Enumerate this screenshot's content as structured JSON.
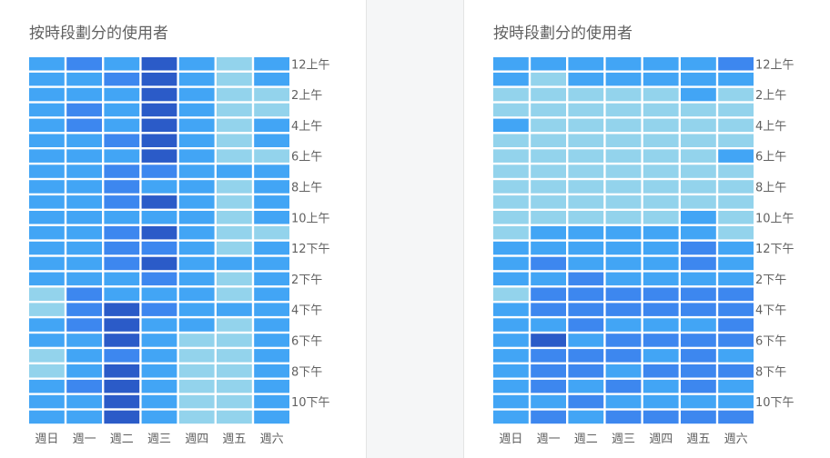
{
  "chart_data": [
    {
      "type": "heatmap",
      "title": "按時段劃分的使用者",
      "x_categories": [
        "週日",
        "週一",
        "週二",
        "週三",
        "週四",
        "週五",
        "週六"
      ],
      "y_labels": [
        "12上午",
        "2上午",
        "4上午",
        "6上午",
        "8上午",
        "10上午",
        "12下午",
        "2下午",
        "4下午",
        "6下午",
        "8下午",
        "10下午"
      ],
      "y_label_every": 2,
      "rows": 24,
      "legend": "none",
      "colors": [
        "#93d3ec",
        "#42a5f5",
        "#3d87ef",
        "#2b5bc8"
      ],
      "levels": [
        [
          1,
          2,
          1,
          3,
          1,
          0,
          1
        ],
        [
          1,
          1,
          2,
          3,
          1,
          0,
          1
        ],
        [
          1,
          1,
          1,
          3,
          1,
          0,
          0
        ],
        [
          1,
          2,
          1,
          3,
          1,
          0,
          0
        ],
        [
          1,
          2,
          1,
          3,
          1,
          0,
          1
        ],
        [
          1,
          1,
          2,
          3,
          1,
          0,
          1
        ],
        [
          1,
          1,
          1,
          3,
          1,
          0,
          0
        ],
        [
          1,
          1,
          2,
          2,
          1,
          1,
          1
        ],
        [
          1,
          1,
          2,
          1,
          1,
          0,
          1
        ],
        [
          1,
          1,
          2,
          3,
          1,
          0,
          1
        ],
        [
          1,
          1,
          1,
          1,
          1,
          0,
          1
        ],
        [
          1,
          1,
          2,
          3,
          1,
          0,
          0
        ],
        [
          1,
          1,
          2,
          2,
          1,
          0,
          1
        ],
        [
          1,
          1,
          2,
          3,
          1,
          1,
          1
        ],
        [
          1,
          1,
          1,
          2,
          1,
          0,
          1
        ],
        [
          0,
          2,
          1,
          1,
          1,
          0,
          1
        ],
        [
          0,
          2,
          3,
          2,
          1,
          1,
          1
        ],
        [
          1,
          2,
          3,
          1,
          1,
          0,
          1
        ],
        [
          1,
          1,
          3,
          1,
          0,
          0,
          1
        ],
        [
          0,
          1,
          2,
          1,
          0,
          0,
          1
        ],
        [
          0,
          1,
          3,
          1,
          0,
          0,
          1
        ],
        [
          1,
          2,
          3,
          1,
          0,
          0,
          1
        ],
        [
          1,
          1,
          3,
          1,
          0,
          0,
          1
        ],
        [
          1,
          1,
          3,
          1,
          0,
          0,
          1
        ]
      ]
    },
    {
      "type": "heatmap",
      "title": "按時段劃分的使用者",
      "x_categories": [
        "週日",
        "週一",
        "週二",
        "週三",
        "週四",
        "週五",
        "週六"
      ],
      "y_labels": [
        "12上午",
        "2上午",
        "4上午",
        "6上午",
        "8上午",
        "10上午",
        "12下午",
        "2下午",
        "4下午",
        "6下午",
        "8下午",
        "10下午"
      ],
      "y_label_every": 2,
      "rows": 24,
      "legend": "none",
      "colors": [
        "#93d3ec",
        "#42a5f5",
        "#3d87ef",
        "#2b5bc8"
      ],
      "levels": [
        [
          1,
          1,
          1,
          1,
          1,
          1,
          2
        ],
        [
          1,
          0,
          1,
          1,
          1,
          1,
          1
        ],
        [
          0,
          0,
          0,
          0,
          0,
          1,
          0
        ],
        [
          0,
          0,
          0,
          0,
          0,
          0,
          0
        ],
        [
          1,
          0,
          0,
          0,
          0,
          0,
          0
        ],
        [
          0,
          0,
          0,
          0,
          0,
          0,
          0
        ],
        [
          0,
          0,
          0,
          0,
          0,
          0,
          1
        ],
        [
          0,
          0,
          0,
          0,
          0,
          0,
          0
        ],
        [
          0,
          0,
          0,
          0,
          0,
          0,
          0
        ],
        [
          0,
          0,
          0,
          0,
          0,
          0,
          0
        ],
        [
          0,
          0,
          0,
          0,
          0,
          1,
          0
        ],
        [
          0,
          1,
          1,
          1,
          1,
          1,
          0
        ],
        [
          1,
          1,
          1,
          1,
          1,
          2,
          1
        ],
        [
          1,
          2,
          1,
          1,
          1,
          2,
          1
        ],
        [
          1,
          1,
          2,
          1,
          1,
          1,
          1
        ],
        [
          0,
          2,
          2,
          2,
          2,
          2,
          2
        ],
        [
          1,
          2,
          2,
          2,
          2,
          2,
          2
        ],
        [
          1,
          1,
          2,
          1,
          1,
          1,
          2
        ],
        [
          1,
          3,
          1,
          2,
          2,
          2,
          2
        ],
        [
          1,
          2,
          2,
          2,
          1,
          2,
          1
        ],
        [
          1,
          2,
          2,
          1,
          2,
          2,
          2
        ],
        [
          1,
          2,
          1,
          2,
          1,
          2,
          1
        ],
        [
          1,
          1,
          2,
          1,
          1,
          1,
          1
        ],
        [
          1,
          2,
          1,
          2,
          2,
          2,
          2
        ]
      ]
    }
  ]
}
